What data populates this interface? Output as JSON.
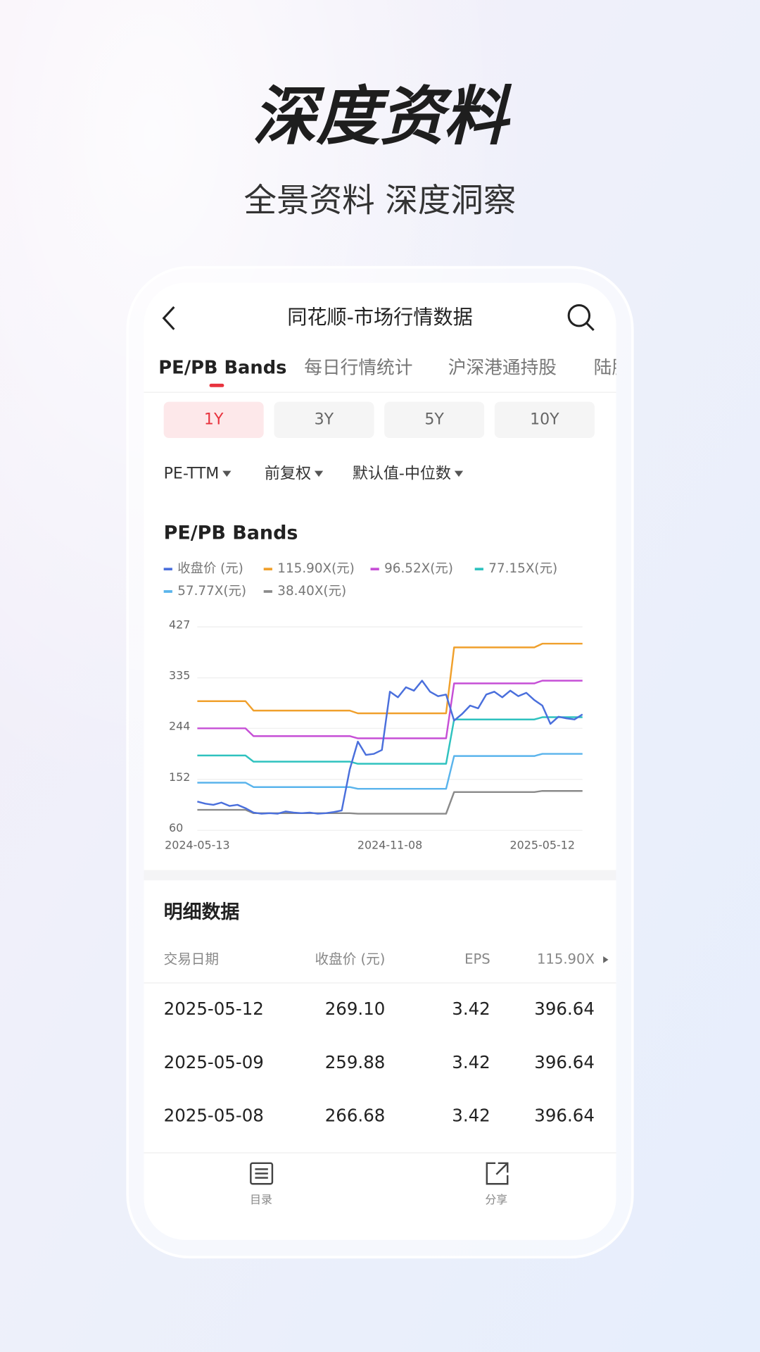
{
  "header": {
    "title": "深度资料",
    "subtitle": "全景资料 深度洞察"
  },
  "app_bar": {
    "title": "同花顺-市场行情数据"
  },
  "tabs": [
    "PE/PB Bands",
    "每日行情统计",
    "沪深港通持股",
    "陆股"
  ],
  "ranges": [
    "1Y",
    "3Y",
    "5Y",
    "10Y"
  ],
  "filters": [
    "PE-TTM",
    "前复权",
    "默认值-中位数"
  ],
  "chart_data": {
    "type": "line",
    "title": "PE/PB Bands",
    "categories": [
      "2024-05-13",
      null,
      null,
      null,
      null,
      null,
      null,
      null,
      null,
      null,
      null,
      null,
      null,
      null,
      null,
      null,
      null,
      null,
      null,
      null,
      null,
      null,
      null,
      null,
      "2024-11-08",
      null,
      null,
      null,
      null,
      null,
      null,
      null,
      null,
      null,
      null,
      null,
      null,
      null,
      null,
      null,
      null,
      null,
      null,
      "2025-05-12",
      null,
      null,
      null,
      null,
      null
    ],
    "series": [
      {
        "name": "收盘价 (元)",
        "color": "#4a6fdc",
        "values": [
          112,
          108,
          106,
          110,
          104,
          106,
          100,
          92,
          90,
          91,
          90,
          94,
          92,
          91,
          92,
          90,
          91,
          93,
          96,
          170,
          220,
          196,
          198,
          205,
          310,
          300,
          318,
          312,
          330,
          310,
          302,
          305,
          258,
          270,
          285,
          280,
          305,
          310,
          300,
          312,
          302,
          308,
          295,
          285,
          252,
          265,
          262,
          260,
          269.1
        ]
      },
      {
        "name": "115.90X(元)",
        "color": "#f0a02c",
        "values": [
          293,
          293,
          293,
          293,
          293,
          293,
          293,
          276,
          276,
          276,
          276,
          276,
          276,
          276,
          276,
          276,
          276,
          276,
          276,
          276,
          271,
          271,
          271,
          271,
          271,
          271,
          271,
          271,
          271,
          271,
          271,
          271,
          390,
          390,
          390,
          390,
          390,
          390,
          390,
          390,
          390,
          390,
          390,
          396.64,
          396.64,
          396.64,
          396.64,
          396.64,
          396.64
        ]
      },
      {
        "name": "96.52X(元)",
        "color": "#c64fd6",
        "values": [
          244,
          244,
          244,
          244,
          244,
          244,
          244,
          230,
          230,
          230,
          230,
          230,
          230,
          230,
          230,
          230,
          230,
          230,
          230,
          230,
          226,
          226,
          226,
          226,
          226,
          226,
          226,
          226,
          226,
          226,
          226,
          226,
          325,
          325,
          325,
          325,
          325,
          325,
          325,
          325,
          325,
          325,
          325,
          330,
          330,
          330,
          330,
          330,
          330
        ]
      },
      {
        "name": "77.15X(元)",
        "color": "#2fc2bf",
        "values": [
          195,
          195,
          195,
          195,
          195,
          195,
          195,
          184,
          184,
          184,
          184,
          184,
          184,
          184,
          184,
          184,
          184,
          184,
          184,
          184,
          180,
          180,
          180,
          180,
          180,
          180,
          180,
          180,
          180,
          180,
          180,
          180,
          260,
          260,
          260,
          260,
          260,
          260,
          260,
          260,
          260,
          260,
          260,
          264,
          264,
          264,
          264,
          264,
          264
        ]
      },
      {
        "name": "57.77X(元)",
        "color": "#5ab4ec",
        "values": [
          146,
          146,
          146,
          146,
          146,
          146,
          146,
          138,
          138,
          138,
          138,
          138,
          138,
          138,
          138,
          138,
          138,
          138,
          138,
          138,
          135,
          135,
          135,
          135,
          135,
          135,
          135,
          135,
          135,
          135,
          135,
          135,
          194,
          194,
          194,
          194,
          194,
          194,
          194,
          194,
          194,
          194,
          194,
          198,
          198,
          198,
          198,
          198,
          198
        ]
      },
      {
        "name": "38.40X(元)",
        "color": "#8a8a8a",
        "values": [
          97,
          97,
          97,
          97,
          97,
          97,
          97,
          91,
          91,
          91,
          91,
          91,
          91,
          91,
          91,
          91,
          91,
          91,
          91,
          91,
          90,
          90,
          90,
          90,
          90,
          90,
          90,
          90,
          90,
          90,
          90,
          90,
          129,
          129,
          129,
          129,
          129,
          129,
          129,
          129,
          129,
          129,
          129,
          131,
          131,
          131,
          131,
          131,
          131
        ]
      }
    ],
    "ylim": [
      60,
      427
    ],
    "yticks": [
      60,
      152,
      244,
      335,
      427
    ],
    "grid": true
  },
  "detail": {
    "title": "明细数据",
    "headers": [
      "交易日期",
      "收盘价 (元)",
      "EPS",
      "115.90X"
    ],
    "rows": [
      [
        "2025-05-12",
        "269.10",
        "3.42",
        "396.64"
      ],
      [
        "2025-05-09",
        "259.88",
        "3.42",
        "396.64"
      ],
      [
        "2025-05-08",
        "266.68",
        "3.42",
        "396.64"
      ]
    ]
  },
  "bottom_bar": [
    "目录",
    "分享"
  ]
}
